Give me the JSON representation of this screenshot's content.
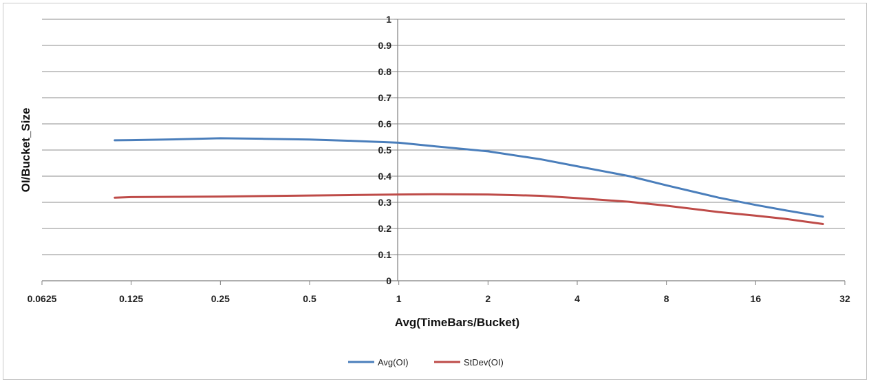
{
  "chart_data": {
    "type": "line",
    "title": "",
    "xlabel": "Avg(TimeBars/Bucket)",
    "ylabel": "OI/Bucket_Size",
    "x_scale": "log2",
    "xlim": [
      0.0625,
      32
    ],
    "ylim": [
      0,
      1
    ],
    "x_ticks": [
      "0.0625",
      "0.125",
      "0.25",
      "0.5",
      "1",
      "2",
      "4",
      "8",
      "16",
      "32"
    ],
    "y_ticks": [
      "0",
      "0.1",
      "0.2",
      "0.3",
      "0.4",
      "0.5",
      "0.6",
      "0.7",
      "0.8",
      "0.9",
      "1"
    ],
    "grid": "horizontal",
    "legend_position": "bottom",
    "series": [
      {
        "name": "Avg(OI)",
        "color": "#4a7ebb",
        "x": [
          0.11,
          0.125,
          0.18,
          0.25,
          0.35,
          0.5,
          0.7,
          1.0,
          1.3,
          2.0,
          3.0,
          4.0,
          6.0,
          8.0,
          12.0,
          16.0,
          20.0,
          27.0
        ],
        "y": [
          0.537,
          0.538,
          0.541,
          0.545,
          0.543,
          0.54,
          0.535,
          0.528,
          0.515,
          0.495,
          0.465,
          0.438,
          0.4,
          0.365,
          0.318,
          0.29,
          0.27,
          0.245
        ]
      },
      {
        "name": "StDev(OI)",
        "color": "#be4b48",
        "x": [
          0.11,
          0.125,
          0.18,
          0.25,
          0.35,
          0.5,
          0.7,
          1.0,
          1.3,
          2.0,
          3.0,
          4.0,
          6.0,
          8.0,
          12.0,
          16.0,
          20.0,
          27.0
        ],
        "y": [
          0.318,
          0.32,
          0.321,
          0.322,
          0.324,
          0.326,
          0.328,
          0.33,
          0.331,
          0.33,
          0.325,
          0.316,
          0.302,
          0.287,
          0.263,
          0.249,
          0.237,
          0.217
        ]
      }
    ]
  }
}
